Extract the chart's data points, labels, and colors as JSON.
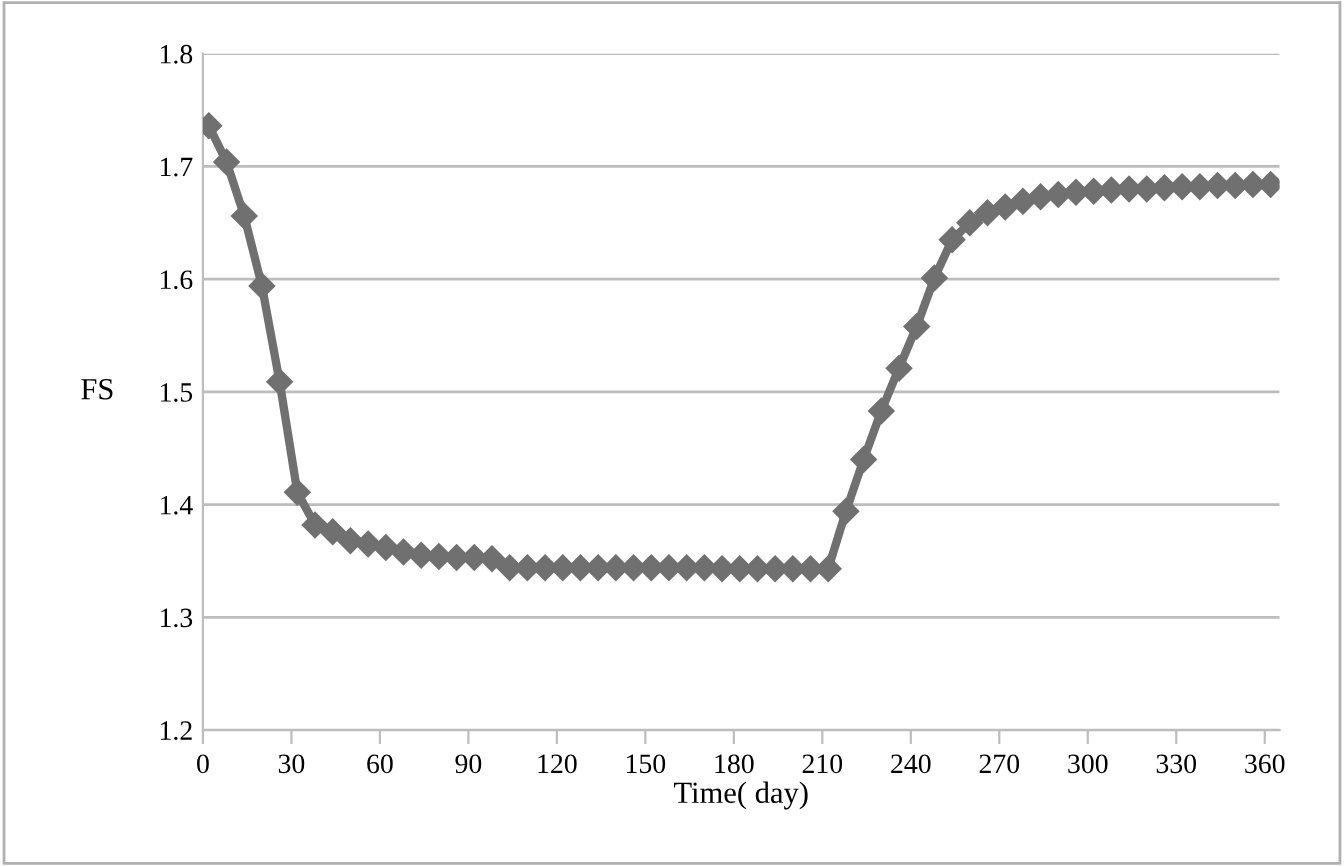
{
  "chart_data": {
    "type": "line",
    "xlabel": "Time( day)",
    "ylabel": "FS",
    "x": [
      2,
      8,
      14,
      20,
      26,
      32,
      38,
      44,
      50,
      56,
      62,
      68,
      74,
      80,
      86,
      92,
      98,
      104,
      110,
      116,
      122,
      128,
      134,
      140,
      146,
      152,
      158,
      164,
      170,
      176,
      182,
      188,
      194,
      200,
      206,
      212,
      218,
      224,
      230,
      236,
      242,
      248,
      254,
      260,
      266,
      272,
      278,
      284,
      290,
      296,
      302,
      308,
      314,
      320,
      326,
      332,
      338,
      344,
      350,
      356,
      362
    ],
    "series": [
      {
        "color": "#707070",
        "values": [
          1.736,
          1.704,
          1.656,
          1.594,
          1.509,
          1.411,
          1.382,
          1.376,
          1.368,
          1.365,
          1.362,
          1.358,
          1.355,
          1.354,
          1.353,
          1.353,
          1.352,
          1.344,
          1.344,
          1.344,
          1.344,
          1.344,
          1.344,
          1.344,
          1.344,
          1.344,
          1.344,
          1.344,
          1.344,
          1.343,
          1.343,
          1.343,
          1.343,
          1.343,
          1.343,
          1.343,
          1.394,
          1.44,
          1.483,
          1.521,
          1.558,
          1.601,
          1.635,
          1.65,
          1.659,
          1.664,
          1.669,
          1.673,
          1.675,
          1.677,
          1.678,
          1.679,
          1.68,
          1.68,
          1.681,
          1.682,
          1.682,
          1.683,
          1.683,
          1.684,
          1.684
        ]
      }
    ],
    "xlim": [
      0,
      365
    ],
    "ylim": [
      1.2,
      1.8
    ],
    "xticks": [
      0,
      30,
      60,
      90,
      120,
      150,
      180,
      210,
      240,
      270,
      300,
      330,
      360
    ],
    "yticks": [
      1.2,
      1.3,
      1.4,
      1.5,
      1.6,
      1.7,
      1.8
    ],
    "grid": "y",
    "marker": "diamond",
    "line_style": "solid",
    "legend": false
  }
}
